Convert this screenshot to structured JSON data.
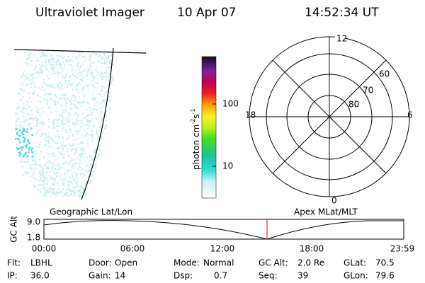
{
  "header": {
    "instrument": "Ultraviolet Imager",
    "date": "10 Apr 07",
    "time": "14:52:34 UT"
  },
  "colorbar": {
    "label": [
      "photon cm",
      "-2",
      "s",
      "-1"
    ],
    "ticks": [
      "100",
      "10"
    ]
  },
  "polar": {
    "mlt_labels": [
      "12",
      "6",
      "0",
      "18"
    ],
    "lat_labels": [
      "60",
      "70",
      "80"
    ]
  },
  "timeline": {
    "axis_label": "GC Alt",
    "y_labels": [
      "9.0",
      "1.8"
    ],
    "left_title": "Geographic Lat/Lon",
    "right_title": "Apex MLat/MLT",
    "time_labels": [
      "00:00",
      "06:00",
      "12:00",
      "18:00",
      "23:59"
    ]
  },
  "info": [
    [
      {
        "label": "Flt:",
        "value": "LBHL"
      },
      {
        "label": "Door:",
        "value": "Open"
      },
      {
        "label": "Mode:",
        "value": "Normal"
      },
      {
        "label": "GC Alt:",
        "value": "2.0 Re"
      },
      {
        "label": "GLat:",
        "value": "70.5"
      }
    ],
    [
      {
        "label": "IP:",
        "value": "36.0"
      },
      {
        "label": "Gain:",
        "value": "14"
      },
      {
        "label": "Dsp:",
        "value": "0.7"
      },
      {
        "label": "Seq:",
        "value": "39"
      },
      {
        "label": "GLon:",
        "value": "79.6"
      }
    ]
  ]
}
